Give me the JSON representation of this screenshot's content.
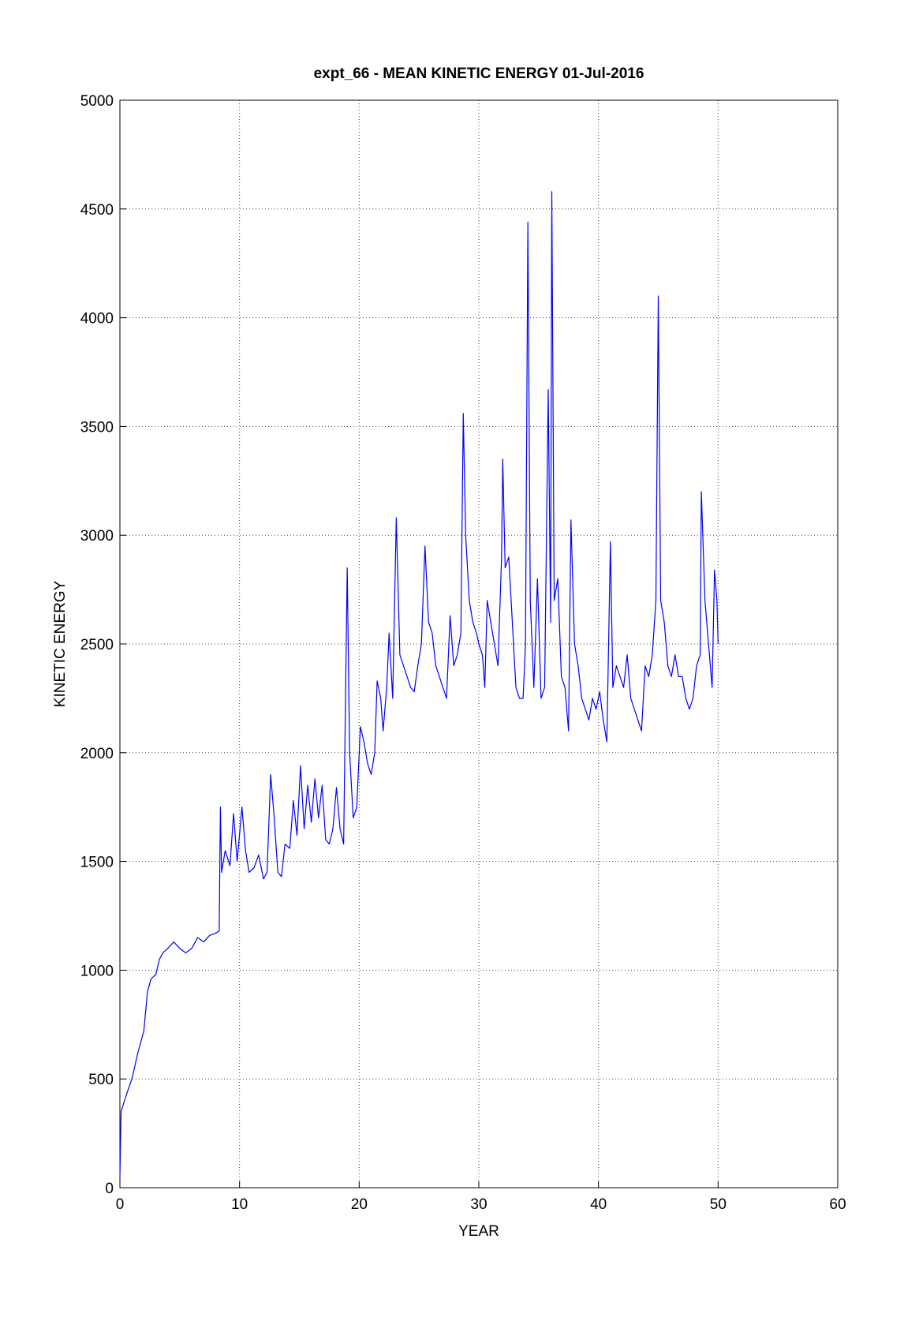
{
  "chart_data": {
    "type": "line",
    "title": "expt_66 - MEAN KINETIC ENERGY 01-Jul-2016",
    "x_label": "YEAR",
    "y_label": "KINETIC ENERGY",
    "xlim": [
      0,
      60
    ],
    "xticks": [
      0,
      10,
      20,
      30,
      40,
      50,
      60
    ],
    "ylim": [
      0,
      5000
    ],
    "yticks": [
      0,
      500,
      1000,
      1500,
      2000,
      2500,
      3000,
      3500,
      4000,
      4500,
      5000
    ],
    "grid": true,
    "x": [
      0,
      0.1,
      0.5,
      1,
      1.5,
      2,
      2.3,
      2.6,
      3,
      3.3,
      3.6,
      4,
      4.5,
      5,
      5.5,
      6,
      6.5,
      7,
      7.5,
      8,
      8.3,
      8.4,
      8.5,
      8.8,
      9.2,
      9.5,
      9.8,
      10.2,
      10.5,
      10.8,
      11.2,
      11.6,
      12,
      12.3,
      12.6,
      12.9,
      13.2,
      13.5,
      13.8,
      14.2,
      14.5,
      14.8,
      15.1,
      15.4,
      15.7,
      16,
      16.3,
      16.6,
      16.9,
      17.2,
      17.5,
      17.8,
      18.1,
      18.4,
      18.7,
      19,
      19.2,
      19.5,
      19.8,
      20.1,
      20.4,
      20.7,
      21,
      21.3,
      21.5,
      21.8,
      22,
      22.3,
      22.5,
      22.8,
      23.1,
      23.4,
      23.7,
      24,
      24.3,
      24.6,
      24.9,
      25.2,
      25.5,
      25.8,
      26.1,
      26.4,
      26.7,
      27,
      27.3,
      27.6,
      27.9,
      28.2,
      28.5,
      28.7,
      28.9,
      29.2,
      29.5,
      29.8,
      30,
      30.3,
      30.5,
      30.7,
      31,
      31.3,
      31.6,
      31.9,
      32,
      32.2,
      32.5,
      32.8,
      33.1,
      33.4,
      33.7,
      33.9,
      34.1,
      34.3,
      34.6,
      34.9,
      35.2,
      35.5,
      35.8,
      36,
      36.1,
      36.3,
      36.6,
      36.9,
      37.2,
      37.5,
      37.7,
      38,
      38.3,
      38.6,
      38.9,
      39.2,
      39.5,
      39.8,
      40.1,
      40.4,
      40.7,
      41,
      41.2,
      41.5,
      41.8,
      42.1,
      42.4,
      42.7,
      43,
      43.3,
      43.6,
      43.9,
      44.2,
      44.5,
      44.8,
      45,
      45.2,
      45.5,
      45.8,
      46.1,
      46.4,
      46.7,
      47,
      47.3,
      47.6,
      47.9,
      48.2,
      48.5,
      48.6,
      48.9,
      49.2,
      49.5,
      49.7,
      49.9,
      50
    ],
    "series": [
      {
        "name": "KINETIC ENERGY",
        "color": "#0000ff",
        "values": [
          50,
          350,
          420,
          500,
          620,
          720,
          900,
          960,
          980,
          1050,
          1080,
          1100,
          1130,
          1100,
          1080,
          1100,
          1150,
          1130,
          1160,
          1170,
          1180,
          1750,
          1450,
          1550,
          1480,
          1720,
          1500,
          1750,
          1550,
          1450,
          1470,
          1530,
          1420,
          1450,
          1900,
          1700,
          1450,
          1430,
          1580,
          1560,
          1780,
          1620,
          1940,
          1650,
          1850,
          1680,
          1880,
          1700,
          1850,
          1600,
          1580,
          1650,
          1840,
          1650,
          1580,
          2850,
          2000,
          1700,
          1750,
          2120,
          2050,
          1950,
          1900,
          2000,
          2330,
          2250,
          2100,
          2300,
          2550,
          2250,
          3080,
          2450,
          2400,
          2350,
          2300,
          2280,
          2400,
          2500,
          2950,
          2600,
          2550,
          2400,
          2350,
          2300,
          2250,
          2630,
          2400,
          2450,
          2550,
          3560,
          3000,
          2700,
          2600,
          2550,
          2500,
          2450,
          2300,
          2700,
          2600,
          2500,
          2400,
          2900,
          3350,
          2850,
          2900,
          2600,
          2300,
          2250,
          2250,
          2500,
          4440,
          2700,
          2300,
          2800,
          2250,
          2300,
          3670,
          2600,
          4580,
          2700,
          2800,
          2350,
          2300,
          2100,
          3070,
          2500,
          2400,
          2250,
          2200,
          2150,
          2250,
          2200,
          2280,
          2150,
          2050,
          2970,
          2300,
          2400,
          2350,
          2300,
          2450,
          2250,
          2200,
          2150,
          2100,
          2400,
          2350,
          2450,
          2700,
          4100,
          2700,
          2600,
          2400,
          2350,
          2450,
          2350,
          2350,
          2250,
          2200,
          2250,
          2400,
          2450,
          3200,
          2700,
          2500,
          2300,
          2840,
          2700,
          2500
        ]
      }
    ]
  }
}
